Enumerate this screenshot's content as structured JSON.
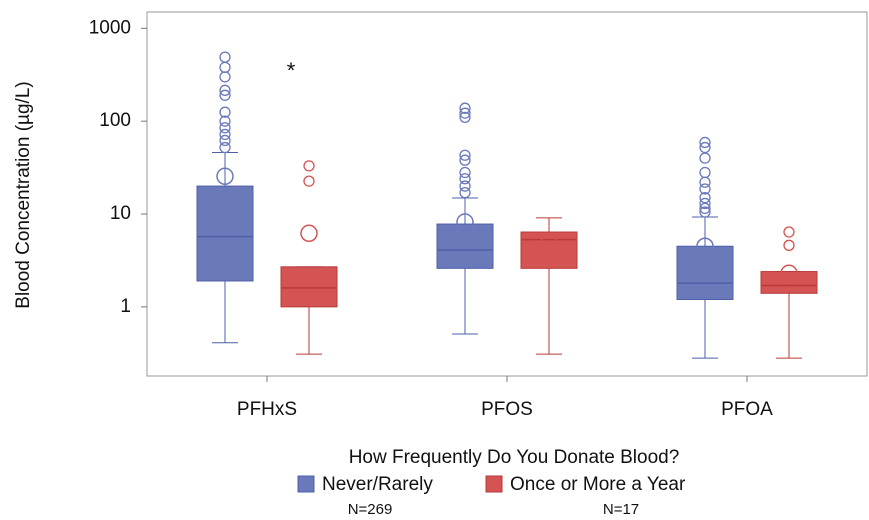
{
  "chart_data": {
    "type": "box",
    "y_label": "Blood Concentration (µg/L)",
    "annotation": "*",
    "categories": [
      "PFHxS",
      "PFOS",
      "PFOA"
    ],
    "y_log": true,
    "ylim": [
      0.18,
      1500
    ],
    "yticks": [
      1,
      10,
      100,
      1000
    ],
    "legend_title": "How Frequently Do You Donate Blood?",
    "series": [
      {
        "name": "Never/Rarely",
        "note": "N=269",
        "color": "#6a79b9",
        "edge": "#4f5fa8",
        "whisker_low": [
          0.41,
          0.51,
          0.28
        ],
        "q1": [
          1.9,
          2.6,
          1.2
        ],
        "median": [
          5.7,
          4.1,
          1.8
        ],
        "q3": [
          20,
          7.8,
          4.5
        ],
        "whisker_high": [
          46,
          14.9,
          9.3
        ],
        "mean": [
          25.5,
          8.2,
          4.5
        ],
        "outliers": [
          [
            490,
            380,
            300,
            215,
            190,
            125,
            100,
            85,
            72,
            62,
            52
          ],
          [
            138,
            122,
            110,
            43,
            38,
            28,
            24,
            20,
            17
          ],
          [
            59,
            52,
            40,
            28,
            22,
            18.6,
            15,
            13,
            11.5,
            10.5
          ]
        ]
      },
      {
        "name": "Once or More a Year",
        "note": "N=17",
        "color": "#d45353",
        "edge": "#b83a3a",
        "whisker_low": [
          0.31,
          0.31,
          0.28
        ],
        "q1": [
          1.0,
          2.6,
          1.4
        ],
        "median": [
          1.6,
          5.3,
          1.7
        ],
        "q3": [
          2.7,
          6.4,
          2.4
        ],
        "whisker_high": [
          2.7,
          9.1,
          2.4
        ],
        "mean": [
          6.2,
          4.9,
          2.3
        ],
        "outliers": [
          [
            33,
            22.6
          ],
          [],
          [
            6.4,
            4.6
          ]
        ]
      }
    ]
  }
}
